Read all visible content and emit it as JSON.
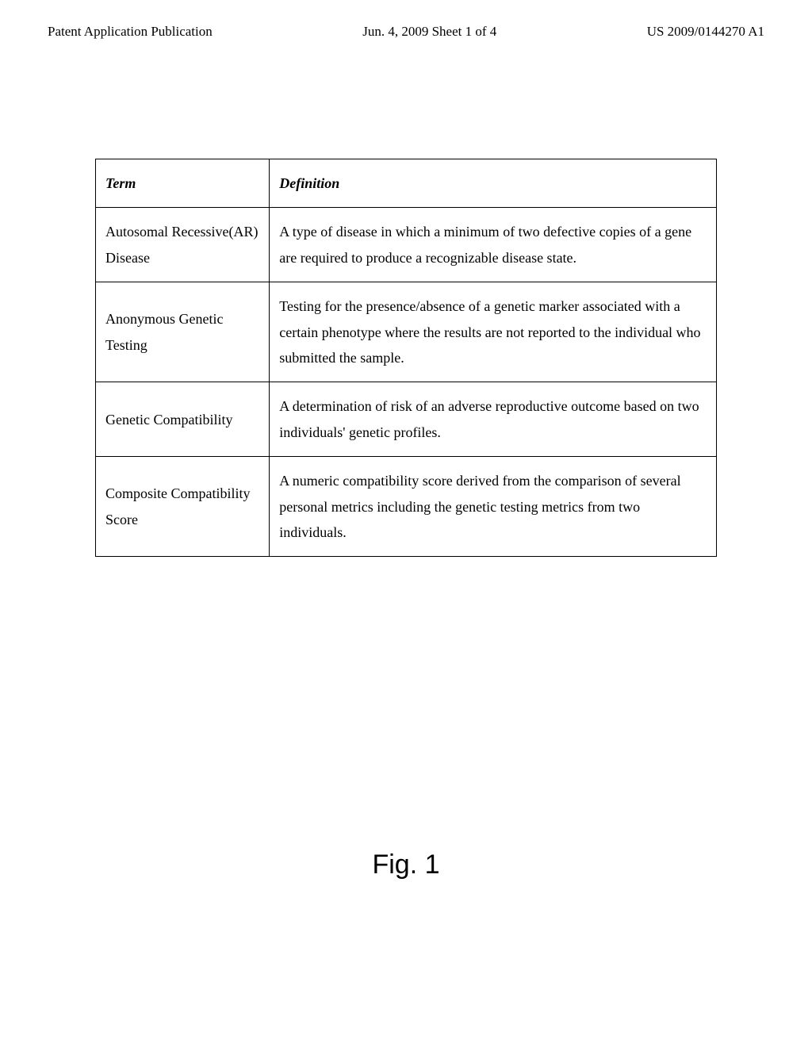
{
  "header": {
    "left": "Patent Application Publication",
    "center": "Jun. 4, 2009  Sheet 1 of 4",
    "right": "US 2009/0144270 A1"
  },
  "table": {
    "headers": {
      "term": "Term",
      "definition": "Definition"
    },
    "rows": [
      {
        "term": "Autosomal Recessive(AR) Disease",
        "definition": "A type of disease in which a minimum of two defective copies of a gene are required to produce a recognizable disease state."
      },
      {
        "term": "Anonymous Genetic Testing",
        "definition": "Testing for the presence/absence of a genetic marker associated with a certain phenotype where the results are not reported to the individual who submitted the sample."
      },
      {
        "term": "Genetic Compatibility",
        "definition": "A determination of risk of an adverse reproductive outcome based on two individuals' genetic profiles."
      },
      {
        "term": "Composite Compatibility Score",
        "definition": "A numeric compatibility score derived from the comparison of several personal metrics including the genetic testing metrics from two individuals."
      }
    ]
  },
  "figure_label": "Fig. 1"
}
